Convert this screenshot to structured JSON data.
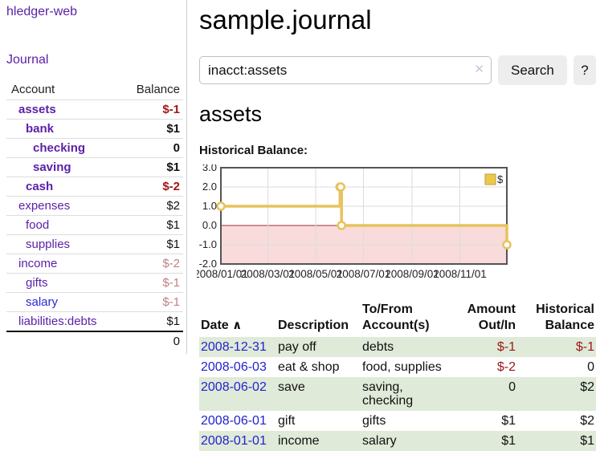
{
  "app_title": "hledger-web",
  "sidebar": {
    "journal_link": "Journal",
    "account_header": "Account",
    "balance_header": "Balance",
    "accounts": [
      {
        "name": "assets",
        "depth": 1,
        "bold": true,
        "link_color": "purple",
        "balance": "$-1",
        "balance_class": "neg-strong"
      },
      {
        "name": "bank",
        "depth": 2,
        "bold": true,
        "link_color": "purple",
        "balance": "$1",
        "balance_class": "pos"
      },
      {
        "name": "checking",
        "depth": 3,
        "bold": true,
        "link_color": "purple",
        "balance": "0",
        "balance_class": "pos"
      },
      {
        "name": "saving",
        "depth": 3,
        "bold": true,
        "link_color": "purple",
        "balance": "$1",
        "balance_class": "pos"
      },
      {
        "name": "cash",
        "depth": 2,
        "bold": true,
        "link_color": "purple",
        "balance": "$-2",
        "balance_class": "neg-strong"
      },
      {
        "name": "expenses",
        "depth": 1,
        "bold": false,
        "link_color": "purple",
        "balance": "$2",
        "balance_class": "pos"
      },
      {
        "name": "food",
        "depth": 2,
        "bold": false,
        "link_color": "purple",
        "balance": "$1",
        "balance_class": "pos"
      },
      {
        "name": "supplies",
        "depth": 2,
        "bold": false,
        "link_color": "purple",
        "balance": "$1",
        "balance_class": "pos"
      },
      {
        "name": "income",
        "depth": 1,
        "bold": false,
        "link_color": "purple",
        "balance": "$-2",
        "balance_class": "neg-soft"
      },
      {
        "name": "gifts",
        "depth": 2,
        "bold": false,
        "link_color": "purple",
        "balance": "$-1",
        "balance_class": "neg-soft"
      },
      {
        "name": "salary",
        "depth": 2,
        "bold": false,
        "link_color": "blue",
        "balance": "$-1",
        "balance_class": "neg-soft"
      },
      {
        "name": "liabilities:debts",
        "depth": 1,
        "bold": false,
        "link_color": "purple",
        "balance": "$1",
        "balance_class": "pos"
      }
    ],
    "total": "0"
  },
  "main": {
    "title": "sample.journal",
    "search": {
      "value": "inacct:assets",
      "clear_icon": "✕",
      "search_button": "Search",
      "help_button": "?"
    },
    "account_heading": "assets",
    "chart_title": "Historical Balance:"
  },
  "chart_data": {
    "type": "line",
    "step": true,
    "title": "Historical Balance",
    "series": [
      {
        "name": "$",
        "points": [
          [
            "2008-01-01",
            1
          ],
          [
            "2008-06-01",
            2
          ],
          [
            "2008-06-02",
            2
          ],
          [
            "2008-06-03",
            0
          ],
          [
            "2008-12-31",
            -1
          ]
        ]
      }
    ],
    "xlim": [
      "2008-01-01",
      "2008-12-31"
    ],
    "ylim": [
      -2,
      3
    ],
    "yticks": [
      3.0,
      2.0,
      1.0,
      0.0,
      -1.0,
      -2.0
    ],
    "xtick_labels": [
      "2008/01/01",
      "2008/03/01",
      "2008/05/01",
      "2008/07/01",
      "2008/09/01",
      "2008/11/01"
    ],
    "legend": {
      "label": "$",
      "position": "top-right"
    },
    "grid": true,
    "line_color": "#e7c35b",
    "marker": "open-circle",
    "marker_fill": "#ffffff",
    "zero_line_color": "#993333",
    "negative_region_color": "#f9dbdb",
    "gridline_color": "#dcdcdc",
    "border_color": "#545454",
    "legend_fill": "#ecc94b",
    "legend_stroke": "#bfa035"
  },
  "register": {
    "headers": {
      "date": "Date",
      "sort_icon": "∧",
      "description": "Description",
      "accounts": "To/From Account(s)",
      "amount": "Amount Out/In",
      "balance": "Historical Balance"
    },
    "rows": [
      {
        "date": "2008-12-31",
        "description": "pay off",
        "accounts": "debts",
        "amount": "$-1",
        "amount_neg": true,
        "balance": "$-1",
        "balance_neg": true
      },
      {
        "date": "2008-06-03",
        "description": "eat & shop",
        "accounts": "food, supplies",
        "amount": "$-2",
        "amount_neg": true,
        "balance": "0",
        "balance_neg": false
      },
      {
        "date": "2008-06-02",
        "description": "save",
        "accounts": "saving, checking",
        "amount": "0",
        "amount_neg": false,
        "balance": "$2",
        "balance_neg": false
      },
      {
        "date": "2008-06-01",
        "description": "gift",
        "accounts": "gifts",
        "amount": "$1",
        "amount_neg": false,
        "balance": "$2",
        "balance_neg": false
      },
      {
        "date": "2008-01-01",
        "description": "income",
        "accounts": "salary",
        "amount": "$1",
        "amount_neg": false,
        "balance": "$1",
        "balance_neg": false
      }
    ]
  },
  "colors": {
    "link_purple": "#5b21a8",
    "link_blue": "#2727d4",
    "date_link_blue": "#2222cf",
    "neg_strong": "#9e1616",
    "neg_soft": "#bf8181",
    "row_green": "#dfead8",
    "divider": "#cccccc"
  }
}
